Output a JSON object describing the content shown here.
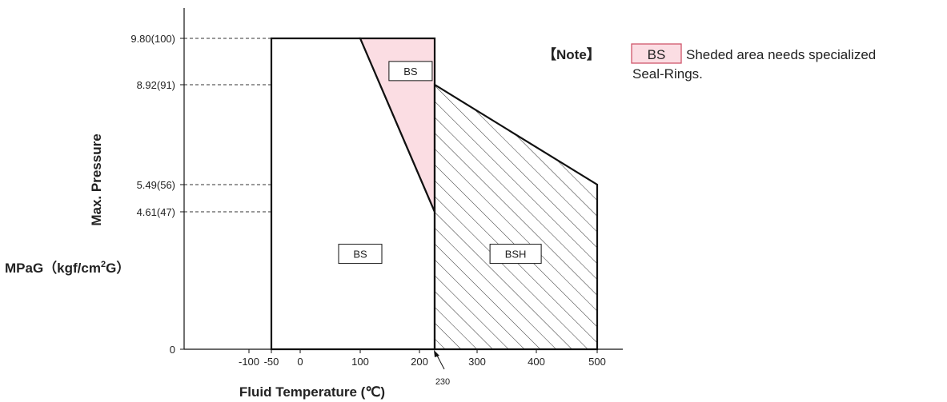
{
  "chart_data": {
    "type": "area",
    "title": "",
    "xlabel": "Fluid Temperature (℃)",
    "ylabel": "Max. Pressure",
    "ylabel_unit_parts": [
      "MPaG（kgf/cm",
      "2",
      "G）"
    ],
    "x_tick_labels": [
      {
        "value": -100,
        "label": "-100"
      },
      {
        "value": -50,
        "label": "-50"
      },
      {
        "value": 0,
        "label": "0"
      },
      {
        "value": 100,
        "label": "100"
      },
      {
        "value": 200,
        "label": "200"
      },
      {
        "value": 300,
        "label": "300"
      },
      {
        "value": 400,
        "label": "400"
      },
      {
        "value": 500,
        "label": "500"
      }
    ],
    "y_tick_labels": [
      {
        "value": 0,
        "label": "0"
      },
      {
        "value": 4.61,
        "label": "4.61(47)"
      },
      {
        "value": 5.49,
        "label": "5.49(56)"
      },
      {
        "value": 8.92,
        "label": "8.92(91)"
      },
      {
        "value": 9.8,
        "label": "9.80(100)"
      }
    ],
    "regions": [
      {
        "label": "BS",
        "points": [
          [
            -50,
            0
          ],
          [
            -50,
            9.8
          ],
          [
            100,
            9.8
          ],
          [
            230,
            4.61
          ],
          [
            230,
            0
          ]
        ],
        "fill": "#ffffff",
        "label_at": [
          100,
          3.2
        ]
      },
      {
        "label": "BS",
        "specialized": true,
        "points": [
          [
            100,
            9.8
          ],
          [
            230,
            9.8
          ],
          [
            230,
            4.61
          ]
        ],
        "fill": "#fbdde3",
        "label_at": [
          185,
          9.18
        ]
      },
      {
        "label": "BSH",
        "hatched": true,
        "points": [
          [
            230,
            0
          ],
          [
            230,
            8.92
          ],
          [
            500,
            5.49
          ],
          [
            500,
            0
          ]
        ],
        "fill": "hatch",
        "label_at": [
          365,
          3.2
        ]
      }
    ],
    "reference_lines_x": [
      100
    ],
    "annotation": {
      "label": "230",
      "x": 230,
      "y": 0
    },
    "note": {
      "prefix": "【Note】",
      "badge": "BS",
      "line1": "Sheded area needs specialized",
      "line2": "Seal-Rings."
    },
    "colors": {
      "specialized_fill": "#fbdde3",
      "badge_border": "#d0566b",
      "line": "#111111"
    },
    "grid": false
  }
}
